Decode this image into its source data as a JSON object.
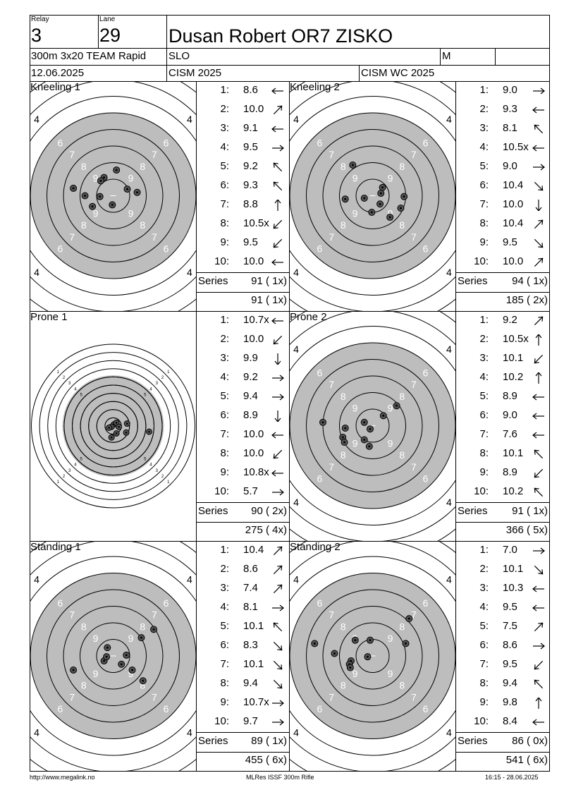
{
  "header": {
    "relay_label": "Relay",
    "relay": "3",
    "lane_label": "Lane",
    "lane": "29",
    "name": "Dusan Robert OR7 ZISKO",
    "event": "300m 3x20 TEAM Rapid",
    "nation": "SLO",
    "gender": "M",
    "date": "12.06.2025",
    "competition": "CISM 2025",
    "match": "CISM WC 2025"
  },
  "series": [
    {
      "title": "Kneeling 1",
      "target": "standard",
      "shots": [
        {
          "n": "1:",
          "v": "8.6",
          "dir": "left"
        },
        {
          "n": "2:",
          "v": "10.0",
          "dir": "upright"
        },
        {
          "n": "3:",
          "v": "9.1",
          "dir": "left"
        },
        {
          "n": "4:",
          "v": "9.5",
          "dir": "right"
        },
        {
          "n": "5:",
          "v": "9.2",
          "dir": "upleft"
        },
        {
          "n": "6:",
          "v": "9.3",
          "dir": "upleft"
        },
        {
          "n": "7:",
          "v": "8.8",
          "dir": "up"
        },
        {
          "n": "8:",
          "v": "10.5x",
          "dir": "downleft"
        },
        {
          "n": "9:",
          "v": "9.5",
          "dir": "downleft"
        },
        {
          "n": "10:",
          "v": "10.0",
          "dir": "left"
        }
      ],
      "series_label": "Series",
      "series_total": "91 ( 1x)",
      "running_total": "91 ( 1x)"
    },
    {
      "title": "Kneeling 2",
      "target": "standard",
      "shots": [
        {
          "n": "1:",
          "v": "9.0",
          "dir": "right"
        },
        {
          "n": "2:",
          "v": "9.3",
          "dir": "left"
        },
        {
          "n": "3:",
          "v": "8.1",
          "dir": "upleft"
        },
        {
          "n": "4:",
          "v": "10.5x",
          "dir": "left"
        },
        {
          "n": "5:",
          "v": "9.0",
          "dir": "right"
        },
        {
          "n": "6:",
          "v": "10.4",
          "dir": "downright"
        },
        {
          "n": "7:",
          "v": "10.0",
          "dir": "down"
        },
        {
          "n": "8:",
          "v": "10.4",
          "dir": "upright"
        },
        {
          "n": "9:",
          "v": "9.5",
          "dir": "downright"
        },
        {
          "n": "10:",
          "v": "10.0",
          "dir": "upright"
        }
      ],
      "series_label": "Series",
      "series_total": "94 ( 1x)",
      "running_total": "185 ( 2x)"
    },
    {
      "title": "Prone 1",
      "target": "prone",
      "shots": [
        {
          "n": "1:",
          "v": "10.7x",
          "dir": "left"
        },
        {
          "n": "2:",
          "v": "10.0",
          "dir": "downleft"
        },
        {
          "n": "3:",
          "v": "9.9",
          "dir": "down"
        },
        {
          "n": "4:",
          "v": "9.2",
          "dir": "right"
        },
        {
          "n": "5:",
          "v": "9.4",
          "dir": "right"
        },
        {
          "n": "6:",
          "v": "8.9",
          "dir": "down"
        },
        {
          "n": "7:",
          "v": "10.0",
          "dir": "left"
        },
        {
          "n": "8:",
          "v": "10.0",
          "dir": "downleft"
        },
        {
          "n": "9:",
          "v": "10.8x",
          "dir": "left"
        },
        {
          "n": "10:",
          "v": "5.7",
          "dir": "right"
        }
      ],
      "series_label": "Series",
      "series_total": "90 ( 2x)",
      "running_total": "275 ( 4x)"
    },
    {
      "title": "Prone 2",
      "target": "standard",
      "shots": [
        {
          "n": "1:",
          "v": "9.2",
          "dir": "upright"
        },
        {
          "n": "2:",
          "v": "10.5x",
          "dir": "up"
        },
        {
          "n": "3:",
          "v": "10.1",
          "dir": "downleft"
        },
        {
          "n": "4:",
          "v": "10.2",
          "dir": "up"
        },
        {
          "n": "5:",
          "v": "8.9",
          "dir": "left"
        },
        {
          "n": "6:",
          "v": "9.0",
          "dir": "left"
        },
        {
          "n": "7:",
          "v": "7.6",
          "dir": "left"
        },
        {
          "n": "8:",
          "v": "10.1",
          "dir": "upleft"
        },
        {
          "n": "9:",
          "v": "8.9",
          "dir": "downleft"
        },
        {
          "n": "10:",
          "v": "10.2",
          "dir": "upleft"
        }
      ],
      "series_label": "Series",
      "series_total": "91 ( 1x)",
      "running_total": "366 ( 5x)"
    },
    {
      "title": "Standing 1",
      "target": "standard",
      "shots": [
        {
          "n": "1:",
          "v": "10.4",
          "dir": "upright"
        },
        {
          "n": "2:",
          "v": "8.6",
          "dir": "upright"
        },
        {
          "n": "3:",
          "v": "7.4",
          "dir": "upright"
        },
        {
          "n": "4:",
          "v": "8.1",
          "dir": "right"
        },
        {
          "n": "5:",
          "v": "10.1",
          "dir": "upleft"
        },
        {
          "n": "6:",
          "v": "8.3",
          "dir": "downright"
        },
        {
          "n": "7:",
          "v": "10.1",
          "dir": "downright"
        },
        {
          "n": "8:",
          "v": "9.4",
          "dir": "downright"
        },
        {
          "n": "9:",
          "v": "10.7x",
          "dir": "right"
        },
        {
          "n": "10:",
          "v": "9.7",
          "dir": "right"
        }
      ],
      "series_label": "Series",
      "series_total": "89 ( 1x)",
      "running_total": "455 ( 6x)"
    },
    {
      "title": "Standing 2",
      "target": "standard",
      "shots": [
        {
          "n": "1:",
          "v": "7.0",
          "dir": "right"
        },
        {
          "n": "2:",
          "v": "10.1",
          "dir": "downright"
        },
        {
          "n": "3:",
          "v": "10.3",
          "dir": "left"
        },
        {
          "n": "4:",
          "v": "9.5",
          "dir": "left"
        },
        {
          "n": "5:",
          "v": "7.5",
          "dir": "upright"
        },
        {
          "n": "6:",
          "v": "8.6",
          "dir": "right"
        },
        {
          "n": "7:",
          "v": "9.5",
          "dir": "downleft"
        },
        {
          "n": "8:",
          "v": "9.4",
          "dir": "upleft"
        },
        {
          "n": "9:",
          "v": "9.8",
          "dir": "up"
        },
        {
          "n": "10:",
          "v": "8.4",
          "dir": "left"
        }
      ],
      "series_label": "Series",
      "series_total": "86 ( 0x)",
      "running_total": "541 ( 6x)"
    }
  ],
  "footer": {
    "url": "http://www.megalink.no",
    "software": "MLRes ISSF 300m Rifle",
    "timestamp": "16:15 - 28.06.2025"
  },
  "colors": {
    "target_grey": "#bdbdbd",
    "line": "#000000",
    "hole": "#555555"
  }
}
